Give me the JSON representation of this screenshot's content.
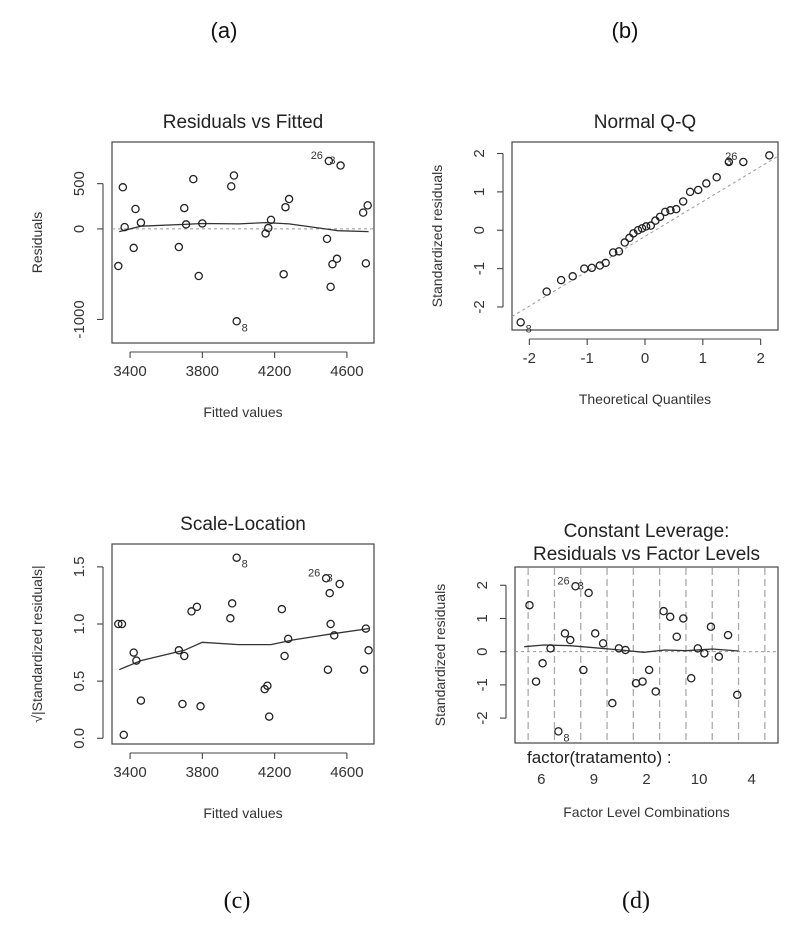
{
  "figure": {
    "panel_labels": [
      "(a)",
      "(b)",
      "(c)",
      "(d)"
    ]
  },
  "chart_data": [
    {
      "type": "scatter",
      "panel": "(a)",
      "title": "Residuals vs Fitted",
      "xlabel": "Fitted values",
      "ylabel": "Residuals",
      "xlim": [
        3300,
        4750
      ],
      "ylim": [
        -1260,
        960
      ],
      "xticks": [
        3400,
        3800,
        4200,
        4600
      ],
      "yticks": [
        -1000,
        0,
        500
      ],
      "points": [
        {
          "x": 3335,
          "y": -410
        },
        {
          "x": 3360,
          "y": 460
        },
        {
          "x": 3370,
          "y": 20
        },
        {
          "x": 3420,
          "y": -210
        },
        {
          "x": 3430,
          "y": 220
        },
        {
          "x": 3460,
          "y": 70
        },
        {
          "x": 3670,
          "y": -200
        },
        {
          "x": 3700,
          "y": 230
        },
        {
          "x": 3710,
          "y": 50
        },
        {
          "x": 3750,
          "y": 550
        },
        {
          "x": 3780,
          "y": -520
        },
        {
          "x": 3800,
          "y": 60
        },
        {
          "x": 3960,
          "y": 470
        },
        {
          "x": 3975,
          "y": 590
        },
        {
          "x": 3990,
          "y": -1020
        },
        {
          "x": 4150,
          "y": -50
        },
        {
          "x": 4165,
          "y": 10
        },
        {
          "x": 4180,
          "y": 100
        },
        {
          "x": 4250,
          "y": -500
        },
        {
          "x": 4260,
          "y": 240
        },
        {
          "x": 4280,
          "y": 330
        },
        {
          "x": 4490,
          "y": -110
        },
        {
          "x": 4500,
          "y": 750
        },
        {
          "x": 4510,
          "y": -640
        },
        {
          "x": 4520,
          "y": -390
        },
        {
          "x": 4545,
          "y": -330
        },
        {
          "x": 4565,
          "y": 700
        },
        {
          "x": 4690,
          "y": 180
        },
        {
          "x": 4705,
          "y": -380
        },
        {
          "x": 4715,
          "y": 260
        }
      ],
      "smooth": [
        [
          3340,
          -30
        ],
        [
          3460,
          30
        ],
        [
          3700,
          50
        ],
        [
          3800,
          60
        ],
        [
          4000,
          55
        ],
        [
          4150,
          70
        ],
        [
          4280,
          55
        ],
        [
          4480,
          0
        ],
        [
          4550,
          -20
        ],
        [
          4720,
          -30
        ]
      ],
      "annotations": [
        {
          "text": "8",
          "x": 3990,
          "y": -1020
        },
        {
          "text": "26",
          "x": 4500,
          "y": 750
        },
        {
          "text": "3",
          "x": 4520,
          "y": 750
        }
      ]
    },
    {
      "type": "scatter",
      "panel": "(b)",
      "title": "Normal Q-Q",
      "xlabel": "Theoretical Quantiles",
      "ylabel": "Standardized residuals",
      "xlim": [
        -2.3,
        2.3
      ],
      "ylim": [
        -2.6,
        2.3
      ],
      "xticks": [
        -2,
        -1,
        0,
        1,
        2
      ],
      "yticks": [
        -2,
        -1,
        0,
        1,
        2
      ],
      "points": [
        {
          "x": -2.15,
          "y": -2.4
        },
        {
          "x": -1.7,
          "y": -1.6
        },
        {
          "x": -1.45,
          "y": -1.3
        },
        {
          "x": -1.25,
          "y": -1.2
        },
        {
          "x": -1.05,
          "y": -1.0
        },
        {
          "x": -0.92,
          "y": -0.98
        },
        {
          "x": -0.78,
          "y": -0.92
        },
        {
          "x": -0.68,
          "y": -0.85
        },
        {
          "x": -0.55,
          "y": -0.58
        },
        {
          "x": -0.45,
          "y": -0.55
        },
        {
          "x": -0.35,
          "y": -0.32
        },
        {
          "x": -0.27,
          "y": -0.2
        },
        {
          "x": -0.2,
          "y": -0.08
        },
        {
          "x": -0.12,
          "y": 0.0
        },
        {
          "x": -0.05,
          "y": 0.05
        },
        {
          "x": 0.02,
          "y": 0.1
        },
        {
          "x": 0.1,
          "y": 0.12
        },
        {
          "x": 0.18,
          "y": 0.25
        },
        {
          "x": 0.26,
          "y": 0.35
        },
        {
          "x": 0.35,
          "y": 0.48
        },
        {
          "x": 0.44,
          "y": 0.52
        },
        {
          "x": 0.54,
          "y": 0.55
        },
        {
          "x": 0.66,
          "y": 0.75
        },
        {
          "x": 0.78,
          "y": 1.0
        },
        {
          "x": 0.92,
          "y": 1.05
        },
        {
          "x": 1.06,
          "y": 1.22
        },
        {
          "x": 1.24,
          "y": 1.38
        },
        {
          "x": 1.45,
          "y": 1.78
        },
        {
          "x": 1.7,
          "y": 1.78
        },
        {
          "x": 2.15,
          "y": 1.95
        }
      ],
      "refline": [
        [
          -2.3,
          -2.25
        ],
        [
          2.3,
          1.93
        ]
      ],
      "annotations": [
        {
          "text": "8",
          "x": -2.15,
          "y": -2.4
        },
        {
          "text": "3",
          "x": 1.45,
          "y": 1.78
        },
        {
          "text": "26",
          "x": 1.7,
          "y": 1.78
        }
      ]
    },
    {
      "type": "scatter",
      "panel": "(c)",
      "title": "Scale-Location",
      "xlabel": "Fitted values",
      "ylabel": "√|Standardized residuals|",
      "xlim": [
        3300,
        4750
      ],
      "ylim": [
        -0.05,
        1.7
      ],
      "xticks": [
        3400,
        3800,
        4200,
        4600
      ],
      "yticks": [
        0.0,
        0.5,
        1.0,
        1.5
      ],
      "points": [
        {
          "x": 3335,
          "y": 1.0
        },
        {
          "x": 3355,
          "y": 1.0
        },
        {
          "x": 3365,
          "y": 0.03
        },
        {
          "x": 3420,
          "y": 0.75
        },
        {
          "x": 3435,
          "y": 0.68
        },
        {
          "x": 3460,
          "y": 0.33
        },
        {
          "x": 3670,
          "y": 0.77
        },
        {
          "x": 3690,
          "y": 0.3
        },
        {
          "x": 3700,
          "y": 0.72
        },
        {
          "x": 3740,
          "y": 1.11
        },
        {
          "x": 3770,
          "y": 1.15
        },
        {
          "x": 3790,
          "y": 0.28
        },
        {
          "x": 3955,
          "y": 1.05
        },
        {
          "x": 3965,
          "y": 1.18
        },
        {
          "x": 3990,
          "y": 1.58
        },
        {
          "x": 4145,
          "y": 0.43
        },
        {
          "x": 4160,
          "y": 0.46
        },
        {
          "x": 4170,
          "y": 0.19
        },
        {
          "x": 4240,
          "y": 1.13
        },
        {
          "x": 4255,
          "y": 0.72
        },
        {
          "x": 4275,
          "y": 0.87
        },
        {
          "x": 4485,
          "y": 1.4
        },
        {
          "x": 4495,
          "y": 0.6
        },
        {
          "x": 4505,
          "y": 1.27
        },
        {
          "x": 4510,
          "y": 1.0
        },
        {
          "x": 4530,
          "y": 0.9
        },
        {
          "x": 4560,
          "y": 1.35
        },
        {
          "x": 4695,
          "y": 0.6
        },
        {
          "x": 4705,
          "y": 0.96
        },
        {
          "x": 4720,
          "y": 0.77
        }
      ],
      "smooth": [
        [
          3340,
          0.6
        ],
        [
          3460,
          0.68
        ],
        [
          3700,
          0.77
        ],
        [
          3800,
          0.84
        ],
        [
          4000,
          0.82
        ],
        [
          4180,
          0.82
        ],
        [
          4300,
          0.86
        ],
        [
          4500,
          0.91
        ],
        [
          4720,
          0.96
        ]
      ],
      "annotations": [
        {
          "text": "8",
          "x": 3990,
          "y": 1.58
        },
        {
          "text": "26",
          "x": 4485,
          "y": 1.4
        },
        {
          "text": "3",
          "x": 4505,
          "y": 1.4
        }
      ]
    },
    {
      "type": "scatter",
      "panel": "(d)",
      "title": [
        "Constant Leverage:",
        "Residuals vs Factor Levels"
      ],
      "xlabel": "Factor Level Combinations",
      "ylabel": "Standardized residuals",
      "factor_name": "factor(tratamento) :",
      "xlim": [
        0.5,
        10.5
      ],
      "ylim": [
        -2.75,
        2.55
      ],
      "yticks": [
        -2,
        -1,
        0,
        1,
        2
      ],
      "xticklabels": [
        {
          "x": 1.5,
          "label": "6"
        },
        {
          "x": 3.5,
          "label": "9"
        },
        {
          "x": 5.5,
          "label": "2"
        },
        {
          "x": 7.5,
          "label": "10"
        },
        {
          "x": 9.5,
          "label": "4"
        }
      ],
      "group_lines": [
        1,
        2,
        3,
        4,
        5,
        6,
        7,
        8,
        9,
        10
      ],
      "points": [
        {
          "x": 1.05,
          "y": 1.4
        },
        {
          "x": 1.3,
          "y": -0.9
        },
        {
          "x": 1.55,
          "y": -0.35
        },
        {
          "x": 1.85,
          "y": 0.1
        },
        {
          "x": 2.15,
          "y": -2.4
        },
        {
          "x": 2.4,
          "y": 0.55
        },
        {
          "x": 2.6,
          "y": 0.35
        },
        {
          "x": 2.8,
          "y": 1.97
        },
        {
          "x": 3.1,
          "y": -0.55
        },
        {
          "x": 3.3,
          "y": 1.77
        },
        {
          "x": 3.55,
          "y": 0.55
        },
        {
          "x": 3.85,
          "y": 0.25
        },
        {
          "x": 4.2,
          "y": -1.55
        },
        {
          "x": 4.45,
          "y": 0.1
        },
        {
          "x": 4.7,
          "y": 0.05
        },
        {
          "x": 5.1,
          "y": -0.95
        },
        {
          "x": 5.35,
          "y": -0.9
        },
        {
          "x": 5.6,
          "y": -0.55
        },
        {
          "x": 5.85,
          "y": -1.2
        },
        {
          "x": 6.15,
          "y": 1.22
        },
        {
          "x": 6.4,
          "y": 1.05
        },
        {
          "x": 6.65,
          "y": 0.45
        },
        {
          "x": 6.9,
          "y": 1.0
        },
        {
          "x": 7.2,
          "y": -0.8
        },
        {
          "x": 7.45,
          "y": 0.1
        },
        {
          "x": 7.7,
          "y": -0.05
        },
        {
          "x": 7.95,
          "y": 0.75
        },
        {
          "x": 8.25,
          "y": -0.15
        },
        {
          "x": 8.6,
          "y": 0.5
        },
        {
          "x": 8.95,
          "y": -1.3
        }
      ],
      "smooth": [
        [
          0.85,
          0.15
        ],
        [
          1.6,
          0.2
        ],
        [
          2.6,
          0.18
        ],
        [
          3.5,
          0.12
        ],
        [
          4.5,
          0.05
        ],
        [
          5.4,
          -0.02
        ],
        [
          6.2,
          0.05
        ],
        [
          7.0,
          0.03
        ],
        [
          8.0,
          0.08
        ],
        [
          9.0,
          0.02
        ]
      ],
      "annotations": [
        {
          "text": "8",
          "x": 2.15,
          "y": -2.4
        },
        {
          "text": "26",
          "x": 2.8,
          "y": 1.97
        },
        {
          "text": "3",
          "x": 3.0,
          "y": 1.97
        }
      ]
    }
  ]
}
